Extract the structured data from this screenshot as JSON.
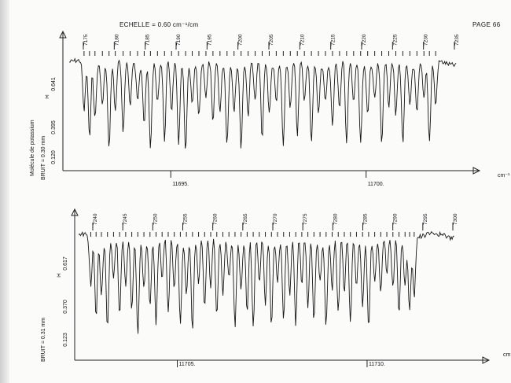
{
  "header": {
    "scale_label": "ECHELLE = 0.60 cm⁻¹/cm",
    "page_label": "PAGE 66"
  },
  "side_labels": {
    "molecule": "Molécule de potassium"
  },
  "chart_data": [
    {
      "type": "line",
      "title": "",
      "xlabel": "cm⁻¹",
      "noise_label": "BRUIT = 0.30 mm",
      "y_ticks": [
        "0.120",
        "0.395",
        "0.641"
      ],
      "y_marker": "I•I",
      "x_ticks": [
        {
          "label": "11695.",
          "value": 11695
        },
        {
          "label": "11700.",
          "value": 11700
        }
      ],
      "xlim": [
        11692.4,
        11702.3
      ],
      "line_numbers": [
        7175,
        7180,
        7185,
        7190,
        7195,
        7200,
        7205,
        7210,
        7215,
        7220,
        7225,
        7230,
        7235
      ],
      "absorption_lines": [
        {
          "x": 11692.78,
          "depth": 0.55
        },
        {
          "x": 11692.92,
          "depth": 0.82
        },
        {
          "x": 11693.06,
          "depth": 0.6
        },
        {
          "x": 11693.25,
          "depth": 0.45
        },
        {
          "x": 11693.42,
          "depth": 0.95
        },
        {
          "x": 11693.58,
          "depth": 0.55
        },
        {
          "x": 11693.78,
          "depth": 0.8
        },
        {
          "x": 11693.96,
          "depth": 0.48
        },
        {
          "x": 11694.15,
          "depth": 0.4
        },
        {
          "x": 11694.32,
          "depth": 0.65
        },
        {
          "x": 11694.48,
          "depth": 0.92
        },
        {
          "x": 11694.66,
          "depth": 0.45
        },
        {
          "x": 11694.84,
          "depth": 0.88
        },
        {
          "x": 11695.02,
          "depth": 0.55
        },
        {
          "x": 11695.2,
          "depth": 0.9
        },
        {
          "x": 11695.38,
          "depth": 0.97
        },
        {
          "x": 11695.55,
          "depth": 0.45
        },
        {
          "x": 11695.72,
          "depth": 0.6
        },
        {
          "x": 11695.9,
          "depth": 0.4
        },
        {
          "x": 11696.08,
          "depth": 0.7
        },
        {
          "x": 11696.26,
          "depth": 0.55
        },
        {
          "x": 11696.44,
          "depth": 0.88
        },
        {
          "x": 11696.62,
          "depth": 0.5
        },
        {
          "x": 11696.8,
          "depth": 0.92
        },
        {
          "x": 11696.98,
          "depth": 0.6
        },
        {
          "x": 11697.16,
          "depth": 0.45
        },
        {
          "x": 11697.34,
          "depth": 0.85
        },
        {
          "x": 11697.52,
          "depth": 0.55
        },
        {
          "x": 11697.7,
          "depth": 0.4
        },
        {
          "x": 11697.88,
          "depth": 0.9
        },
        {
          "x": 11698.06,
          "depth": 0.5
        },
        {
          "x": 11698.24,
          "depth": 0.82
        },
        {
          "x": 11698.42,
          "depth": 0.45
        },
        {
          "x": 11698.6,
          "depth": 0.88
        },
        {
          "x": 11698.78,
          "depth": 0.55
        },
        {
          "x": 11698.96,
          "depth": 0.4
        },
        {
          "x": 11699.14,
          "depth": 0.7
        },
        {
          "x": 11699.32,
          "depth": 0.52
        },
        {
          "x": 11699.5,
          "depth": 0.9
        },
        {
          "x": 11699.68,
          "depth": 0.45
        },
        {
          "x": 11699.86,
          "depth": 0.86
        },
        {
          "x": 11700.04,
          "depth": 0.55
        },
        {
          "x": 11700.22,
          "depth": 0.4
        },
        {
          "x": 11700.4,
          "depth": 0.92
        },
        {
          "x": 11700.58,
          "depth": 0.5
        },
        {
          "x": 11700.76,
          "depth": 0.6
        },
        {
          "x": 11700.94,
          "depth": 0.88
        },
        {
          "x": 11701.12,
          "depth": 0.45
        },
        {
          "x": 11701.3,
          "depth": 0.55
        },
        {
          "x": 11701.48,
          "depth": 0.4
        },
        {
          "x": 11701.62,
          "depth": 0.9
        },
        {
          "x": 11701.78,
          "depth": 0.5
        }
      ]
    },
    {
      "type": "line",
      "title": "",
      "xlabel": "cm⁻¹",
      "noise_label": "BRUIT = 0.31 mm",
      "y_ticks": [
        "0.123",
        "0.370",
        "0.617"
      ],
      "y_marker": "I•I",
      "x_ticks": [
        {
          "label": "11705.",
          "value": 11705
        },
        {
          "label": "11710.",
          "value": 11710
        }
      ],
      "xlim": [
        11702.4,
        11712.3
      ],
      "line_numbers": [
        7240,
        7245,
        7250,
        7255,
        7260,
        7265,
        7270,
        7275,
        7280,
        7285,
        7290,
        7295,
        7300
      ],
      "absorption_lines": [
        {
          "x": 11702.72,
          "depth": 0.5
        },
        {
          "x": 11702.86,
          "depth": 0.8
        },
        {
          "x": 11703.0,
          "depth": 0.6
        },
        {
          "x": 11703.16,
          "depth": 0.92
        },
        {
          "x": 11703.32,
          "depth": 0.45
        },
        {
          "x": 11703.48,
          "depth": 0.85
        },
        {
          "x": 11703.64,
          "depth": 0.55
        },
        {
          "x": 11703.8,
          "depth": 0.78
        },
        {
          "x": 11703.96,
          "depth": 0.98
        },
        {
          "x": 11704.12,
          "depth": 0.5
        },
        {
          "x": 11704.28,
          "depth": 0.7
        },
        {
          "x": 11704.44,
          "depth": 0.9
        },
        {
          "x": 11704.6,
          "depth": 0.45
        },
        {
          "x": 11704.76,
          "depth": 0.82
        },
        {
          "x": 11704.92,
          "depth": 0.55
        },
        {
          "x": 11705.08,
          "depth": 0.88
        },
        {
          "x": 11705.24,
          "depth": 0.6
        },
        {
          "x": 11705.4,
          "depth": 0.94
        },
        {
          "x": 11705.56,
          "depth": 0.48
        },
        {
          "x": 11705.72,
          "depth": 0.75
        },
        {
          "x": 11705.88,
          "depth": 0.55
        },
        {
          "x": 11706.04,
          "depth": 0.85
        },
        {
          "x": 11706.2,
          "depth": 0.6
        },
        {
          "x": 11706.36,
          "depth": 0.4
        },
        {
          "x": 11706.52,
          "depth": 0.9
        },
        {
          "x": 11706.68,
          "depth": 0.55
        },
        {
          "x": 11706.84,
          "depth": 0.8
        },
        {
          "x": 11707.0,
          "depth": 0.96
        },
        {
          "x": 11707.16,
          "depth": 0.5
        },
        {
          "x": 11707.32,
          "depth": 0.7
        },
        {
          "x": 11707.48,
          "depth": 0.88
        },
        {
          "x": 11707.64,
          "depth": 0.45
        },
        {
          "x": 11707.8,
          "depth": 0.82
        },
        {
          "x": 11707.96,
          "depth": 0.6
        },
        {
          "x": 11708.12,
          "depth": 0.92
        },
        {
          "x": 11708.28,
          "depth": 0.5
        },
        {
          "x": 11708.44,
          "depth": 0.75
        },
        {
          "x": 11708.6,
          "depth": 0.86
        },
        {
          "x": 11708.76,
          "depth": 0.45
        },
        {
          "x": 11708.92,
          "depth": 0.9
        },
        {
          "x": 11709.08,
          "depth": 0.55
        },
        {
          "x": 11709.24,
          "depth": 0.8
        },
        {
          "x": 11709.4,
          "depth": 0.6
        },
        {
          "x": 11709.56,
          "depth": 0.88
        },
        {
          "x": 11709.72,
          "depth": 0.5
        },
        {
          "x": 11709.88,
          "depth": 0.7
        },
        {
          "x": 11710.04,
          "depth": 0.92
        },
        {
          "x": 11710.2,
          "depth": 0.45
        },
        {
          "x": 11710.36,
          "depth": 0.6
        },
        {
          "x": 11710.52,
          "depth": 0.4
        },
        {
          "x": 11710.68,
          "depth": 0.55
        },
        {
          "x": 11710.84,
          "depth": 0.82
        },
        {
          "x": 11711.0,
          "depth": 0.5
        },
        {
          "x": 11711.12,
          "depth": 0.75
        },
        {
          "x": 11711.24,
          "depth": 0.6
        }
      ]
    }
  ]
}
